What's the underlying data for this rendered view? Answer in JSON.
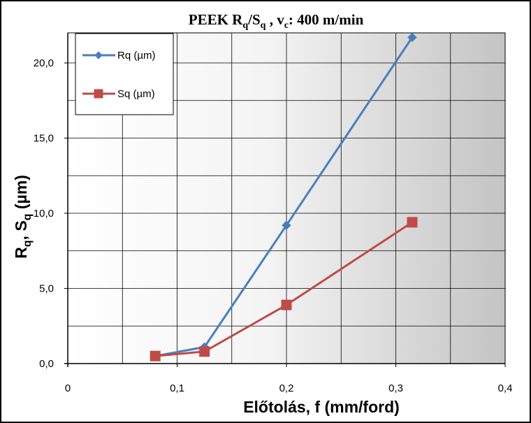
{
  "chart_data": {
    "type": "line",
    "title": {
      "main": "PEEK R",
      "sub1": "q",
      "mid": "/S",
      "sub2": "q",
      "tail1": " , v",
      "sub3": "c",
      "tail2": ": 400 m/min"
    },
    "xlabel": "Előtolás, f (mm/ford)",
    "ylabel": {
      "a": "R",
      "a_sub": "q",
      "mid": ", S",
      "b_sub": "q",
      "tail": " (µm)"
    },
    "xlim": [
      0,
      0.4
    ],
    "ylim": [
      0,
      22
    ],
    "x_ticks": [
      {
        "value": 0,
        "label": "0"
      },
      {
        "value": 0.1,
        "label": "0,1"
      },
      {
        "value": 0.2,
        "label": "0,2"
      },
      {
        "value": 0.3,
        "label": "0,3"
      },
      {
        "value": 0.4,
        "label": "0,4"
      }
    ],
    "y_ticks": [
      {
        "value": 0,
        "label": "0,0"
      },
      {
        "value": 5,
        "label": "5,0"
      },
      {
        "value": 10,
        "label": "10,0"
      },
      {
        "value": 15,
        "label": "15,0"
      },
      {
        "value": 20,
        "label": "20,0"
      }
    ],
    "grid": true,
    "legend_position": "top-left",
    "series": [
      {
        "name": "Rq (µm)",
        "color": "#4a7ebb",
        "marker": "diamond",
        "x": [
          0.08,
          0.125,
          0.2,
          0.315
        ],
        "y": [
          0.5,
          1.1,
          9.2,
          21.7
        ]
      },
      {
        "name": "Sq (µm)",
        "color": "#be4b48",
        "marker": "square",
        "x": [
          0.08,
          0.125,
          0.2,
          0.315
        ],
        "y": [
          0.5,
          0.8,
          3.9,
          9.4
        ]
      }
    ]
  }
}
